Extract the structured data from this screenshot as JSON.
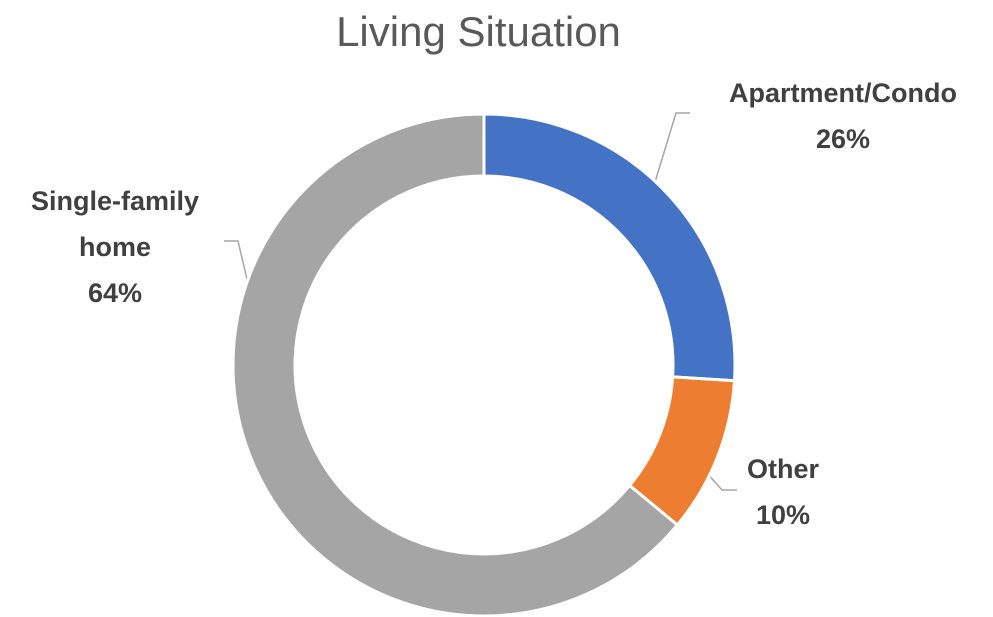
{
  "chart_data": {
    "type": "donut",
    "title": "Living Situation",
    "categories": [
      "Apartment/Condo",
      "Other",
      "Single-family home"
    ],
    "values": [
      26,
      10,
      64
    ],
    "value_labels": [
      "26%",
      "10%",
      "64%"
    ],
    "colors": [
      "#4472c4",
      "#ed7d31",
      "#a5a5a5"
    ]
  }
}
